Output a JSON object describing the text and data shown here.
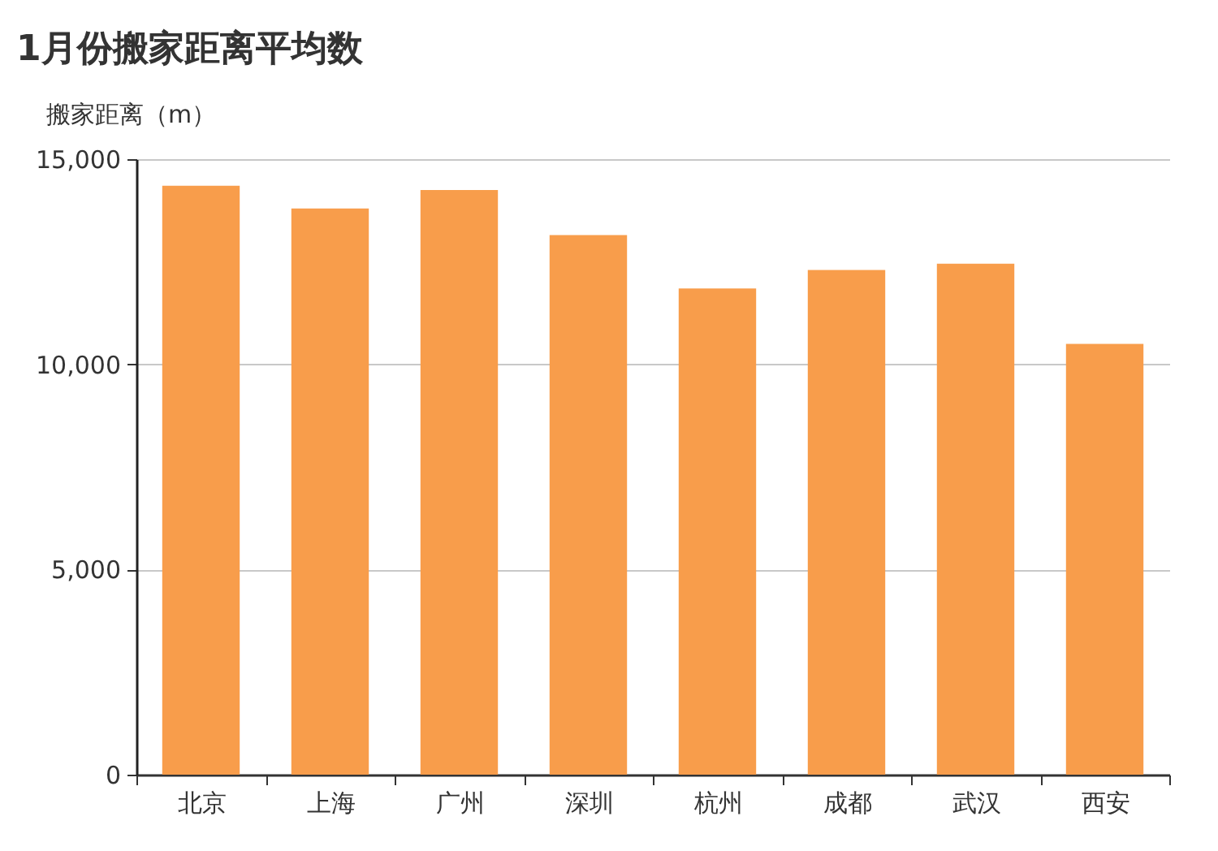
{
  "chart_data": {
    "type": "bar",
    "title": "1月份搬家距离平均数",
    "ylabel": "搬家距离（m）",
    "categories": [
      "北京",
      "上海",
      "广州",
      "深圳",
      "杭州",
      "成都",
      "武汉",
      "西安"
    ],
    "values": [
      14350,
      13800,
      14250,
      13150,
      11850,
      12300,
      12450,
      10500
    ],
    "color": "#f89d4b",
    "ylim": [
      0,
      15000
    ],
    "yticks": [
      {
        "value": 0,
        "label": "0"
      },
      {
        "value": 5000,
        "label": "5,000"
      },
      {
        "value": 10000,
        "label": "10,000"
      },
      {
        "value": 15000,
        "label": "15,000"
      }
    ],
    "grid": "y"
  }
}
